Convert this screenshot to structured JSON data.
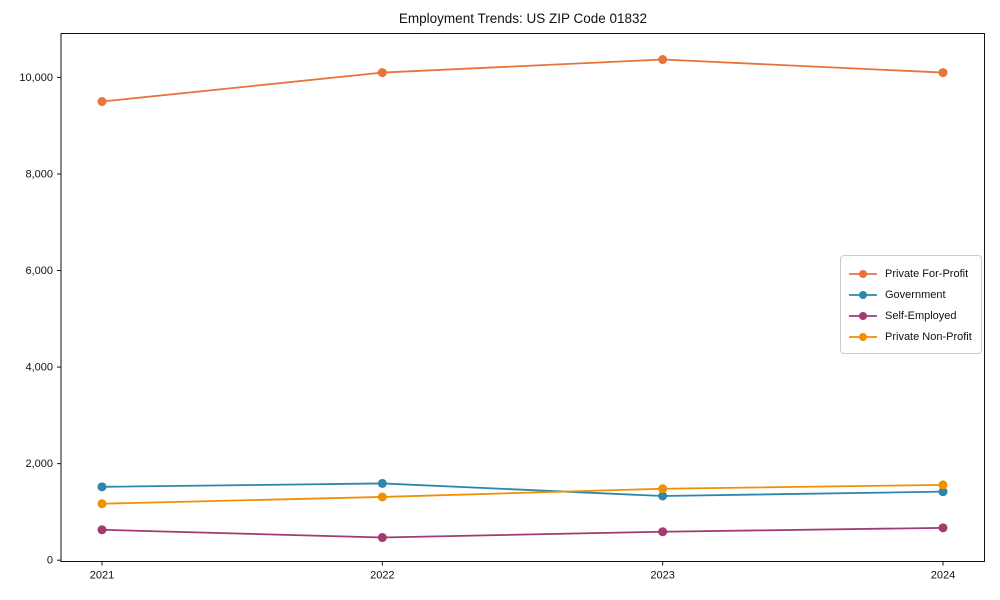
{
  "figure": {
    "title": "Employment Trends: US ZIP Code 01832"
  },
  "chart_data": {
    "type": "line",
    "title": "Employment Trends: US ZIP Code 01832",
    "xlabel": "",
    "ylabel": "",
    "categories": [
      "2021",
      "2022",
      "2023",
      "2024"
    ],
    "series": [
      {
        "name": "Private For-Profit",
        "color": "#E8743B",
        "values": [
          9500,
          10100,
          10370,
          10100
        ]
      },
      {
        "name": "Government",
        "color": "#2E86AB",
        "values": [
          1520,
          1590,
          1330,
          1420
        ]
      },
      {
        "name": "Self-Employed",
        "color": "#A23B72",
        "values": [
          630,
          470,
          590,
          670
        ]
      },
      {
        "name": "Private Non-Profit",
        "color": "#F18F01",
        "values": [
          1170,
          1310,
          1480,
          1560
        ]
      }
    ],
    "ylim": [
      0,
      10900
    ],
    "yticks": {
      "values": [
        0,
        2000,
        4000,
        6000,
        8000,
        10000
      ],
      "labels": [
        "0",
        "2,000",
        "4,000",
        "6,000",
        "8,000",
        "10,000"
      ]
    },
    "grid": false,
    "legend_position": "center-right",
    "frame": "full-box"
  }
}
